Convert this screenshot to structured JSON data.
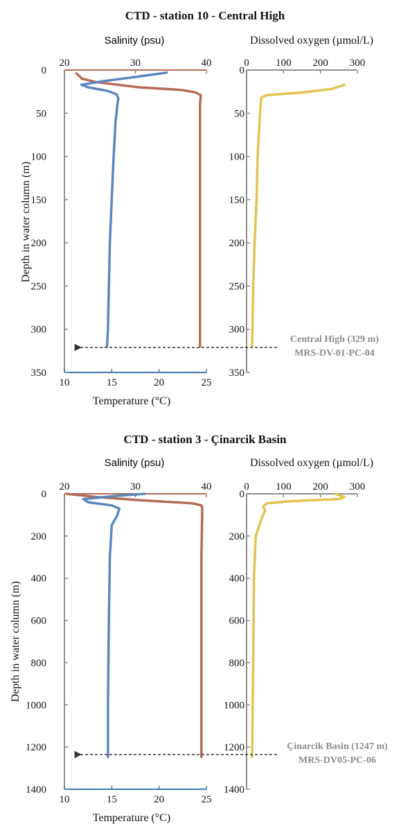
{
  "colors": {
    "salinity": "#b56b53",
    "temperature": "#5b86bd",
    "temp_axis": "#3a79b4",
    "oxygen": "#e3c24f",
    "axis_gray": "#888888"
  },
  "chart_data": [
    {
      "type": "line",
      "title": "CTD - station 10 - Central High",
      "ylabel": "Depth in water column (m)",
      "ylim": [
        0,
        350
      ],
      "yticks": [
        "0",
        "50",
        "100",
        "150",
        "200",
        "250",
        "300",
        "350"
      ],
      "ytick_values": [
        0,
        50,
        100,
        150,
        200,
        250,
        300,
        350
      ],
      "salinity_axis": {
        "label": "Salinity (psu)",
        "ticks": [
          "20",
          "30",
          "40"
        ],
        "tick_values": [
          20,
          30,
          40
        ],
        "range": [
          20,
          40
        ]
      },
      "temperature_axis": {
        "label": "Temperature (°C)",
        "ticks": [
          "10",
          "15",
          "20",
          "25"
        ],
        "tick_values": [
          10,
          15,
          20,
          25
        ],
        "range": [
          10,
          25
        ]
      },
      "oxygen_axis": {
        "label": "Dissolved oxygen (µmol/L)",
        "ticks": [
          "0",
          "100",
          "200",
          "300"
        ],
        "tick_values": [
          0,
          100,
          200,
          300
        ],
        "range": [
          0,
          300
        ]
      },
      "series": [
        {
          "name": "Salinity (psu)",
          "axis": "salinity",
          "depth": [
            4,
            10,
            14,
            17,
            20,
            23,
            26,
            29,
            40,
            100,
            200,
            300,
            320
          ],
          "values": [
            21.7,
            22.5,
            24.5,
            27.5,
            30.5,
            36.5,
            38.5,
            39.2,
            39.1,
            39.1,
            39.1,
            39.1,
            39.1
          ]
        },
        {
          "name": "Temperature (°C)",
          "axis": "temperature",
          "depth": [
            3,
            8,
            13,
            17,
            20,
            24,
            28,
            33,
            40,
            60,
            100,
            150,
            200,
            250,
            300,
            320
          ],
          "values": [
            20.8,
            17.5,
            14.0,
            11.8,
            12.5,
            14.5,
            15.5,
            15.7,
            15.6,
            15.4,
            15.2,
            15.0,
            14.8,
            14.7,
            14.6,
            14.5
          ]
        },
        {
          "name": "Dissolved oxygen (µmol/L)",
          "axis": "oxygen",
          "depth": [
            17,
            22,
            26,
            29,
            32,
            40,
            60,
            100,
            150,
            200,
            250,
            300,
            320
          ],
          "values": [
            265,
            230,
            150,
            55,
            40,
            38,
            35,
            30,
            27,
            22,
            18,
            16,
            15
          ]
        }
      ],
      "annotation": {
        "line1": "Central High (329 m)",
        "line2": "MRS-DV-01-PC-04",
        "depth": 329
      }
    },
    {
      "type": "line",
      "title": "CTD - station 3 - Çinarcik Basin",
      "ylabel": "Depth in water column (m)",
      "ylim": [
        0,
        1400
      ],
      "yticks": [
        "0",
        "200",
        "400",
        "600",
        "800",
        "1000",
        "1200",
        "1400"
      ],
      "ytick_values": [
        0,
        200,
        400,
        600,
        800,
        1000,
        1200,
        1400
      ],
      "salinity_axis": {
        "label": "Salinity (psu)",
        "ticks": [
          "20",
          "30",
          "40"
        ],
        "tick_values": [
          20,
          30,
          40
        ],
        "range": [
          20,
          40
        ]
      },
      "temperature_axis": {
        "label": "Temperature (°C)",
        "ticks": [
          "10",
          "15",
          "20",
          "25"
        ],
        "tick_values": [
          10,
          15,
          20,
          25
        ],
        "range": [
          10,
          25
        ]
      },
      "oxygen_axis": {
        "label": "Dissolved oxygen (µmol/L)",
        "ticks": [
          "0",
          "100",
          "200",
          "300"
        ],
        "tick_values": [
          0,
          100,
          200,
          300
        ],
        "range": [
          0,
          300
        ]
      },
      "series": [
        {
          "name": "Salinity (psu)",
          "axis": "salinity",
          "depth": [
            0,
            15,
            30,
            45,
            55,
            65,
            100,
            300,
            600,
            1000,
            1247
          ],
          "values": [
            20.3,
            24.5,
            30.5,
            38.0,
            39.3,
            39.4,
            39.4,
            39.3,
            39.3,
            39.3,
            39.3
          ]
        },
        {
          "name": "Temperature (°C)",
          "axis": "temperature",
          "depth": [
            0,
            10,
            25,
            40,
            55,
            70,
            100,
            150,
            300,
            600,
            1000,
            1247
          ],
          "values": [
            18.5,
            15.5,
            12.0,
            12.5,
            15.0,
            15.8,
            15.6,
            15.0,
            14.8,
            14.7,
            14.6,
            14.6
          ]
        },
        {
          "name": "Dissolved oxygen (µmol/L)",
          "axis": "oxygen",
          "depth": [
            0,
            15,
            25,
            35,
            45,
            60,
            80,
            120,
            200,
            400,
            800,
            1247
          ],
          "values": [
            240,
            265,
            250,
            120,
            55,
            45,
            50,
            40,
            25,
            20,
            18,
            15
          ]
        }
      ],
      "annotation": {
        "line1": "Çinarcik Basin (1247 m)",
        "line2": "MRS-DV05-PC-06",
        "depth": 1247
      }
    }
  ]
}
